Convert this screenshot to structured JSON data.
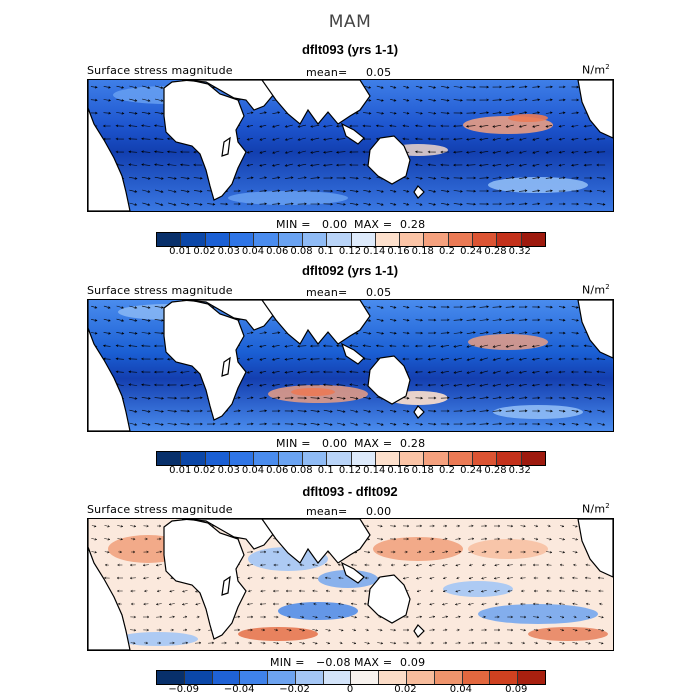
{
  "season_title": "MAM",
  "panels": [
    {
      "title": "dflt093 (yrs 1-1)",
      "variable_label": "Surface stress magnitude",
      "mean_label": "mean=",
      "mean_value": "0.05",
      "units": "N/m",
      "units_exp": "2",
      "min_label": "MIN =",
      "min_value": "0.00",
      "max_label": "MAX =",
      "max_value": "0.28",
      "colorbar_ticks": [
        "0.01",
        "0.02",
        "0.03",
        "0.04",
        "0.06",
        "0.08",
        "0.1",
        "0.12",
        "0.14",
        "0.16",
        "0.18",
        "0.2",
        "0.24",
        "0.28",
        "0.32"
      ],
      "colorbar_colors": [
        "#08306b",
        "#0b47a8",
        "#1a5fd4",
        "#2f75e6",
        "#4a8cee",
        "#6aa3f2",
        "#8fbbf5",
        "#b9d4f8",
        "#ddeafb",
        "#fde0cc",
        "#fbc4a6",
        "#f5a17e",
        "#eb7a55",
        "#dc5433",
        "#c4311b",
        "#9e1a0e"
      ]
    },
    {
      "title": "dflt092 (yrs 1-1)",
      "variable_label": "Surface stress magnitude",
      "mean_label": "mean=",
      "mean_value": "0.05",
      "units": "N/m",
      "units_exp": "2",
      "min_label": "MIN =",
      "min_value": "0.00",
      "max_label": "MAX =",
      "max_value": "0.28",
      "colorbar_ticks": [
        "0.01",
        "0.02",
        "0.03",
        "0.04",
        "0.06",
        "0.08",
        "0.1",
        "0.12",
        "0.14",
        "0.16",
        "0.18",
        "0.2",
        "0.24",
        "0.28",
        "0.32"
      ],
      "colorbar_colors": [
        "#08306b",
        "#0b47a8",
        "#1a5fd4",
        "#2f75e6",
        "#4a8cee",
        "#6aa3f2",
        "#8fbbf5",
        "#b9d4f8",
        "#ddeafb",
        "#fde0cc",
        "#fbc4a6",
        "#f5a17e",
        "#eb7a55",
        "#dc5433",
        "#c4311b",
        "#9e1a0e"
      ]
    },
    {
      "title": "dflt093 - dflt092",
      "variable_label": "Surface stress magnitude",
      "mean_label": "mean=",
      "mean_value": "0.00",
      "units": "N/m",
      "units_exp": "2",
      "min_label": "MIN =",
      "min_value": "−0.08",
      "max_label": "MAX =",
      "max_value": "0.09",
      "colorbar_ticks": [
        "−0.09",
        "−0.04",
        "−0.02",
        "0",
        "0.02",
        "0.04",
        "0.09"
      ],
      "colorbar_colors": [
        "#08306b",
        "#0b47a8",
        "#1f62d6",
        "#3f82ea",
        "#6da3f0",
        "#a4c6f5",
        "#d3e4fa",
        "#f7f2ee",
        "#fbdcc7",
        "#f7bc9c",
        "#ef946c",
        "#e3683f",
        "#cf4120",
        "#a8200f"
      ]
    }
  ]
}
